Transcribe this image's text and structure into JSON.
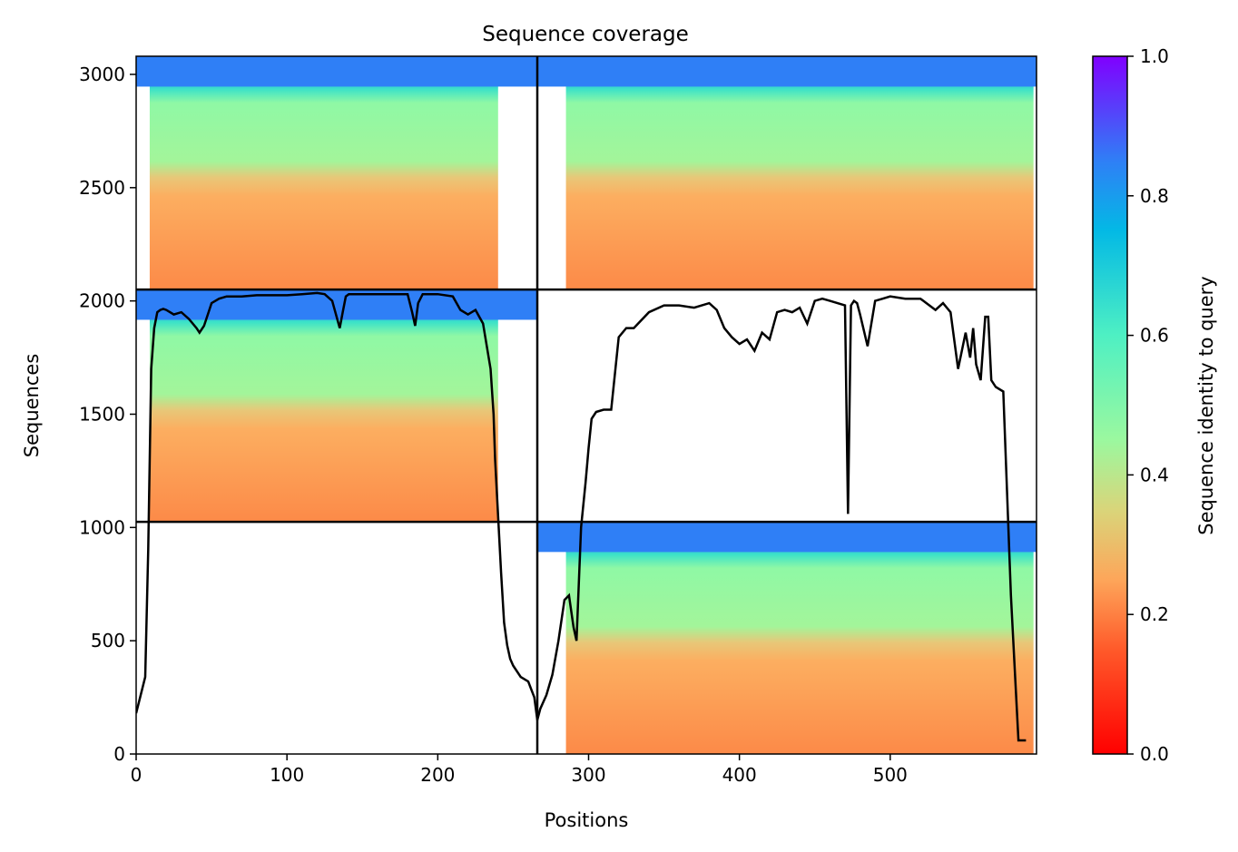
{
  "chart_data": {
    "type": "heatmap",
    "title": "Sequence coverage",
    "xlabel": "Positions",
    "ylabel": "Sequences",
    "xlim": [
      0,
      597
    ],
    "ylim": [
      0,
      3080
    ],
    "xticks": [
      0,
      100,
      200,
      300,
      400,
      500
    ],
    "yticks": [
      0,
      500,
      1000,
      1500,
      2000,
      2500,
      3000
    ],
    "colorbar": {
      "label": "Sequence identity to query",
      "ticks": [
        0.0,
        0.2,
        0.4,
        0.6,
        0.8,
        1.0
      ],
      "colormap": "rainbow"
    },
    "dividers": {
      "x": 266,
      "y": [
        1025,
        2050
      ]
    },
    "blocks": [
      {
        "x": [
          0,
          266
        ],
        "y": [
          2050,
          3080
        ],
        "start_x": 9,
        "end_x": 240
      },
      {
        "x": [
          266,
          597
        ],
        "y": [
          2050,
          3080
        ],
        "start_x": 285,
        "end_x": 595
      },
      {
        "x": [
          0,
          266
        ],
        "y": [
          1025,
          2050
        ],
        "start_x": 9,
        "end_x": 240
      },
      {
        "x": [
          266,
          597
        ],
        "y": [
          0,
          1025
        ],
        "start_x": 285,
        "end_x": 595
      }
    ],
    "coverage_line": {
      "x": [
        0,
        3,
        6,
        8,
        10,
        12,
        14,
        16,
        18,
        20,
        25,
        30,
        35,
        40,
        42,
        45,
        48,
        50,
        55,
        60,
        70,
        80,
        90,
        100,
        110,
        120,
        125,
        130,
        135,
        137,
        139,
        141,
        145,
        150,
        160,
        170,
        180,
        183,
        185,
        187,
        190,
        200,
        210,
        215,
        220,
        225,
        230,
        235,
        237,
        238,
        240,
        242,
        244,
        246,
        248,
        250,
        255,
        260,
        264,
        266,
        268,
        272,
        276,
        280,
        284,
        287,
        290,
        292,
        295,
        298,
        300,
        302,
        305,
        310,
        315,
        320,
        325,
        330,
        340,
        350,
        360,
        370,
        380,
        385,
        390,
        395,
        400,
        405,
        410,
        415,
        420,
        425,
        430,
        435,
        440,
        445,
        450,
        455,
        460,
        465,
        470,
        472,
        474,
        476,
        478,
        480,
        485,
        490,
        495,
        500,
        510,
        520,
        530,
        535,
        540,
        545,
        550,
        553,
        555,
        557,
        560,
        563,
        565,
        567,
        570,
        575,
        580,
        585,
        590,
        592,
        595,
        597
      ],
      "y": [
        180,
        260,
        340,
        900,
        1700,
        1880,
        1950,
        1960,
        1965,
        1960,
        1940,
        1950,
        1920,
        1880,
        1860,
        1890,
        1950,
        1990,
        2010,
        2020,
        2020,
        2025,
        2025,
        2025,
        2030,
        2035,
        2030,
        2000,
        1880,
        1950,
        2020,
        2030,
        2030,
        2030,
        2030,
        2030,
        2030,
        1950,
        1890,
        1990,
        2030,
        2030,
        2020,
        1960,
        1940,
        1960,
        1900,
        1700,
        1500,
        1300,
        1050,
        800,
        580,
        480,
        420,
        390,
        340,
        320,
        250,
        150,
        200,
        260,
        350,
        500,
        680,
        700,
        560,
        500,
        1000,
        1200,
        1350,
        1480,
        1510,
        1520,
        1520,
        1840,
        1880,
        1880,
        1950,
        1980,
        1980,
        1970,
        1990,
        1960,
        1880,
        1840,
        1810,
        1830,
        1780,
        1860,
        1830,
        1950,
        1960,
        1950,
        1970,
        1900,
        2000,
        2010,
        2000,
        1990,
        1980,
        1060,
        1980,
        2000,
        1990,
        1940,
        1800,
        2000,
        2010,
        2020,
        2010,
        2010,
        1960,
        1990,
        1950,
        1700,
        1860,
        1750,
        1880,
        1720,
        1650,
        1930,
        1930,
        1650,
        1620,
        1600,
        700,
        60,
        60
      ]
    }
  }
}
